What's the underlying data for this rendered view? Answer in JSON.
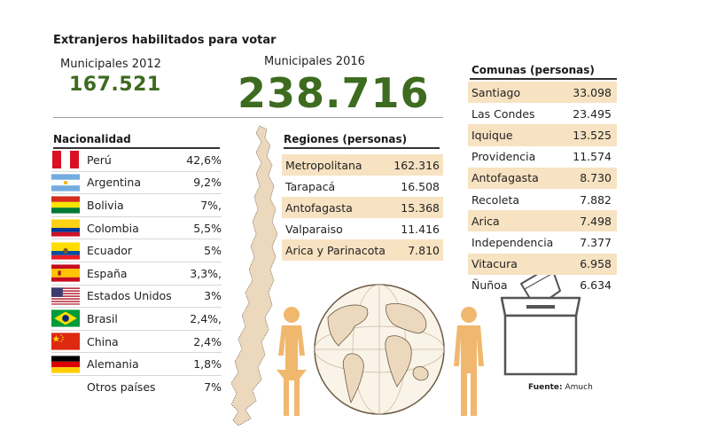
{
  "title": "Extranjeros habilitados para votar",
  "municipales_2012": {
    "label": "Municipales 2012",
    "value": "167.521"
  },
  "municipales_2016": {
    "label": "Municipales 2016",
    "value": "238.716"
  },
  "nacionalidad": {
    "heading": "Nacionalidad",
    "items": [
      {
        "name": "Perú",
        "pct": "42,6%",
        "flag": "peru-flag-icon"
      },
      {
        "name": "Argentina",
        "pct": "9,2%",
        "flag": "argentina-flag-icon"
      },
      {
        "name": "Bolivia",
        "pct": "7%,",
        "flag": "bolivia-flag-icon"
      },
      {
        "name": "Colombia",
        "pct": "5,5%",
        "flag": "colombia-flag-icon"
      },
      {
        "name": "Ecuador",
        "pct": "5%",
        "flag": "ecuador-flag-icon"
      },
      {
        "name": "España",
        "pct": "3,3%,",
        "flag": "spain-flag-icon"
      },
      {
        "name": "Estados Unidos",
        "pct": "3%",
        "flag": "usa-flag-icon"
      },
      {
        "name": "Brasil",
        "pct": "2,4%,",
        "flag": "brazil-flag-icon"
      },
      {
        "name": "China",
        "pct": "2,4%",
        "flag": "china-flag-icon"
      },
      {
        "name": "Alemania",
        "pct": "1,8%",
        "flag": "germany-flag-icon"
      },
      {
        "name": "Otros países",
        "pct": "7%",
        "flag": ""
      }
    ]
  },
  "regiones": {
    "heading": "Regiones (personas)",
    "items": [
      {
        "name": "Metropolitana",
        "value": "162.316"
      },
      {
        "name": "Tarapacá",
        "value": "16.508"
      },
      {
        "name": "Antofagasta",
        "value": "15.368"
      },
      {
        "name": "Valparaiso",
        "value": "11.416"
      },
      {
        "name": "Arica y Parinacota",
        "value": "7.810"
      }
    ]
  },
  "comunas": {
    "heading": "Comunas (personas)",
    "items": [
      {
        "name": "Santiago",
        "value": "33.098"
      },
      {
        "name": "Las Condes",
        "value": "23.495"
      },
      {
        "name": "Iquique",
        "value": "13.525"
      },
      {
        "name": "Providencia",
        "value": "11.574"
      },
      {
        "name": "Antofagasta",
        "value": "8.730"
      },
      {
        "name": "Recoleta",
        "value": "7.882"
      },
      {
        "name": "Arica",
        "value": "7.498"
      },
      {
        "name": "Independencia",
        "value": "7.377"
      },
      {
        "name": "Vitacura",
        "value": "6.958"
      },
      {
        "name": "Ñuñoa",
        "value": "6.634"
      }
    ]
  },
  "fuente": {
    "label": "Fuente:",
    "value": "Amuch"
  },
  "colors": {
    "accent_green": "#3d6b1f",
    "highlight": "#f7e2c2",
    "figure_orange": "#f0b86e",
    "map_fill": "#ecd9bd"
  },
  "icons": [
    "chile-map-icon",
    "globe-icon",
    "woman-figure-icon",
    "man-figure-icon",
    "ballot-box-icon"
  ]
}
